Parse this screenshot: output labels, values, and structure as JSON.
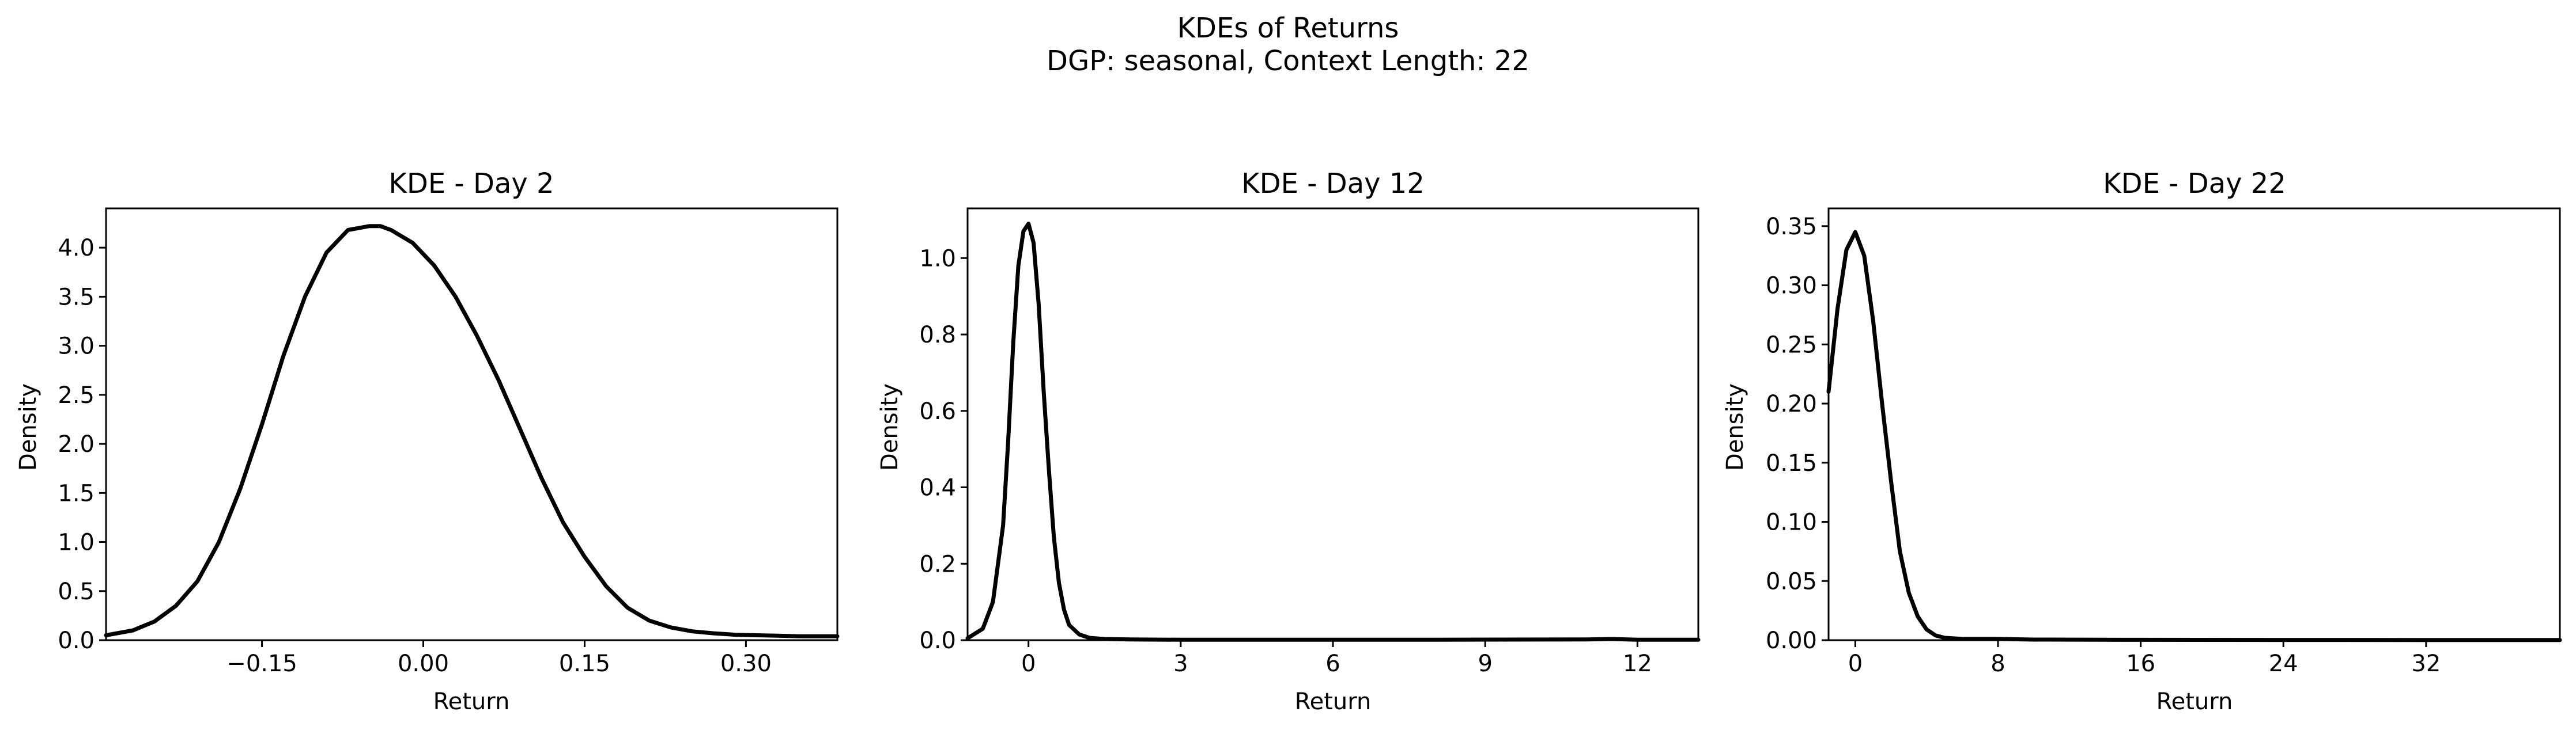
{
  "figure": {
    "title_line1": "KDEs of Returns",
    "title_line2": "DGP: seasonal, Context Length: 22"
  },
  "chart_data": [
    {
      "type": "line",
      "title": "KDE - Day 2",
      "xlabel": "Return",
      "ylabel": "Density",
      "xlim": [
        -0.295,
        0.385
      ],
      "ylim": [
        0,
        4.4
      ],
      "xticks": [
        -0.15,
        0.0,
        0.15,
        0.3
      ],
      "xtick_labels": [
        "−0.15",
        "0.00",
        "0.15",
        "0.30"
      ],
      "yticks": [
        0.0,
        0.5,
        1.0,
        1.5,
        2.0,
        2.5,
        3.0,
        3.5,
        4.0
      ],
      "ytick_labels": [
        "0.0",
        "0.5",
        "1.0",
        "1.5",
        "2.0",
        "2.5",
        "3.0",
        "3.5",
        "4.0"
      ],
      "grid": false,
      "color": "#000000",
      "x": [
        -0.295,
        -0.27,
        -0.25,
        -0.23,
        -0.21,
        -0.19,
        -0.17,
        -0.15,
        -0.13,
        -0.11,
        -0.09,
        -0.07,
        -0.05,
        -0.04,
        -0.03,
        -0.01,
        0.01,
        0.03,
        0.05,
        0.07,
        0.09,
        0.11,
        0.13,
        0.15,
        0.17,
        0.19,
        0.21,
        0.23,
        0.25,
        0.27,
        0.29,
        0.31,
        0.33,
        0.35,
        0.385
      ],
      "y": [
        0.05,
        0.1,
        0.19,
        0.35,
        0.6,
        1.0,
        1.55,
        2.2,
        2.9,
        3.5,
        3.95,
        4.18,
        4.22,
        4.22,
        4.18,
        4.05,
        3.82,
        3.5,
        3.1,
        2.65,
        2.15,
        1.65,
        1.2,
        0.85,
        0.55,
        0.33,
        0.2,
        0.13,
        0.09,
        0.07,
        0.055,
        0.05,
        0.045,
        0.04,
        0.04
      ]
    },
    {
      "type": "line",
      "title": "KDE - Day 12",
      "xlabel": "Return",
      "ylabel": "Density",
      "xlim": [
        -1.2,
        13.2
      ],
      "ylim": [
        0,
        1.13
      ],
      "xticks": [
        0,
        3,
        6,
        9,
        12
      ],
      "xtick_labels": [
        "0",
        "3",
        "6",
        "9",
        "12"
      ],
      "yticks": [
        0.0,
        0.2,
        0.4,
        0.6,
        0.8,
        1.0
      ],
      "ytick_labels": [
        "0.0",
        "0.2",
        "0.4",
        "0.6",
        "0.8",
        "1.0"
      ],
      "grid": false,
      "color": "#000000",
      "x": [
        -1.2,
        -0.9,
        -0.7,
        -0.5,
        -0.4,
        -0.3,
        -0.2,
        -0.1,
        0.0,
        0.1,
        0.2,
        0.3,
        0.4,
        0.5,
        0.6,
        0.7,
        0.8,
        1.0,
        1.2,
        1.5,
        2.0,
        3.0,
        5.0,
        8.0,
        11.0,
        11.5,
        12.0,
        13.2
      ],
      "y": [
        0.005,
        0.03,
        0.1,
        0.3,
        0.52,
        0.78,
        0.98,
        1.07,
        1.09,
        1.04,
        0.88,
        0.65,
        0.45,
        0.27,
        0.15,
        0.08,
        0.04,
        0.015,
        0.006,
        0.003,
        0.002,
        0.001,
        0.001,
        0.001,
        0.002,
        0.003,
        0.001,
        0.001
      ]
    },
    {
      "type": "line",
      "title": "KDE - Day 22",
      "xlabel": "Return",
      "ylabel": "Density",
      "xlim": [
        -1.5,
        39.5
      ],
      "ylim": [
        0,
        0.365
      ],
      "xticks": [
        0,
        8,
        16,
        24,
        32
      ],
      "xtick_labels": [
        "0",
        "8",
        "16",
        "24",
        "32"
      ],
      "yticks": [
        0.0,
        0.05,
        0.1,
        0.15,
        0.2,
        0.25,
        0.3,
        0.35
      ],
      "ytick_labels": [
        "0.00",
        "0.05",
        "0.10",
        "0.15",
        "0.20",
        "0.25",
        "0.30",
        "0.35"
      ],
      "grid": false,
      "color": "#000000",
      "x": [
        -1.5,
        -1.0,
        -0.5,
        0.0,
        0.5,
        1.0,
        1.5,
        2.0,
        2.5,
        3.0,
        3.5,
        4.0,
        4.5,
        5.0,
        6.0,
        8.0,
        10.0,
        16.0,
        24.0,
        32.0,
        39.5
      ],
      "y": [
        0.21,
        0.28,
        0.33,
        0.345,
        0.325,
        0.27,
        0.2,
        0.135,
        0.075,
        0.04,
        0.02,
        0.009,
        0.004,
        0.002,
        0.001,
        0.001,
        0.0005,
        0.0003,
        0.0002,
        0.0001,
        0.0001
      ]
    }
  ]
}
